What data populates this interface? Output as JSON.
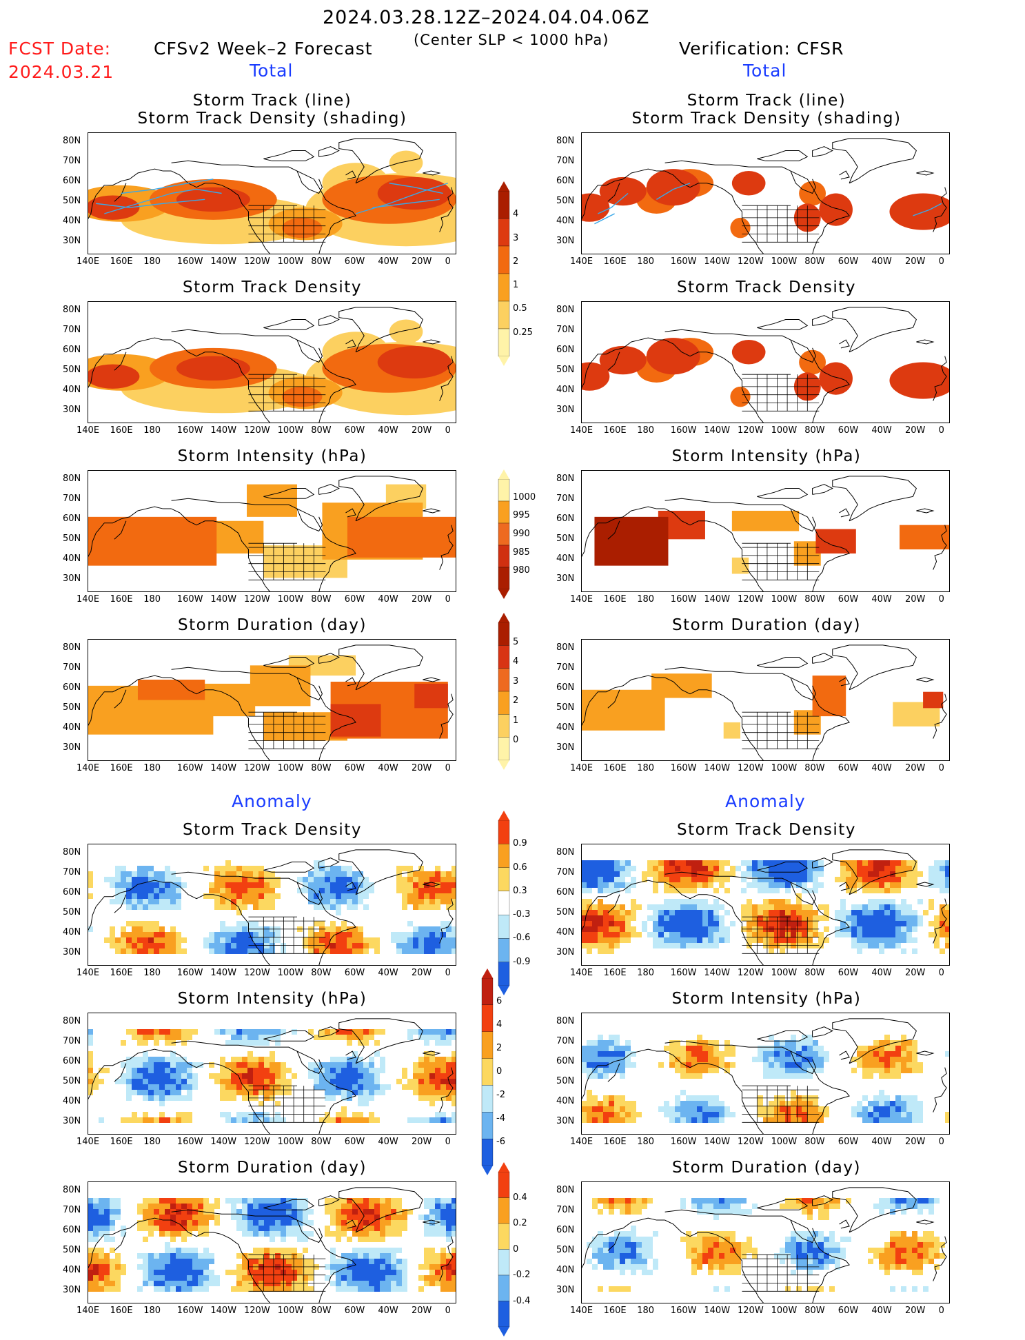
{
  "header": {
    "period": "2024.03.28.12Z–2024.04.04.06Z",
    "criterion": "(Center SLP < 1000 hPa)",
    "fcst_label": "FCST Date:",
    "fcst_date": "2024.03.21",
    "forecast_title": "CFSv2 Week–2 Forecast",
    "verification_title": "Verification: CFSR",
    "total_label": "Total",
    "anomaly_label": "Anomaly"
  },
  "panel_titles": {
    "track": [
      "Storm Track (line)",
      "Storm Track Density (shading)"
    ],
    "density": "Storm Track Density",
    "intensity": "Storm Intensity (hPa)",
    "duration": "Storm Duration (day)"
  },
  "axes": {
    "lon_labels": [
      "140E",
      "160E",
      "180",
      "160W",
      "140W",
      "120W",
      "100W",
      "80W",
      "60W",
      "40W",
      "20W",
      "0"
    ],
    "lat_labels": [
      "80N",
      "70N",
      "60N",
      "50N",
      "40N",
      "30N"
    ]
  },
  "colorbars": {
    "density": {
      "labels": [
        "4",
        "3",
        "2",
        "1",
        "0.5",
        "0.25"
      ],
      "colors": [
        "#aa1e00",
        "#dd3a10",
        "#f26a10",
        "#f9a020",
        "#fcd060",
        "#fff3a8"
      ]
    },
    "intensity": {
      "labels": [
        "1000",
        "995",
        "990",
        "985",
        "980"
      ],
      "colors": [
        "#fff3a8",
        "#f9a020",
        "#ee6a20",
        "#d03010",
        "#aa1e00"
      ]
    },
    "duration": {
      "labels": [
        "5",
        "4",
        "3",
        "2",
        "1",
        "0"
      ],
      "colors": [
        "#aa1e00",
        "#d83414",
        "#ee6a20",
        "#f9a020",
        "#fcd060",
        "#fff3a8"
      ]
    },
    "anom_density": {
      "labels": [
        "0.9",
        "0.6",
        "0.3",
        "-0.3",
        "-0.6",
        "-0.9"
      ],
      "colors": [
        "#f24010",
        "#f9a020",
        "#fcd860",
        "#ffffff",
        "#bfe9f8",
        "#6cb4f0",
        "#1e5fe0"
      ]
    },
    "anom_intensity": {
      "labels": [
        "6",
        "4",
        "2",
        "0",
        "-2",
        "-4",
        "-6"
      ],
      "colors": [
        "#c02010",
        "#f24010",
        "#f9a020",
        "#fcd860",
        "#bfe9f8",
        "#6cb4f0",
        "#1e5fe0"
      ]
    },
    "anom_duration": {
      "labels": [
        "0.4",
        "0.2",
        "0",
        "-0.2",
        "-0.4"
      ],
      "colors": [
        "#f24010",
        "#f9a020",
        "#fcd860",
        "#bfe9f8",
        "#6cb4f0",
        "#1e5fe0"
      ]
    }
  },
  "palette": {
    "warm": [
      "#fff3a8",
      "#fcd060",
      "#f9a020",
      "#f26a10",
      "#dd3a10",
      "#aa1e00"
    ],
    "cool": [
      "#bfe9f8",
      "#6cb4f0",
      "#1e5fe0"
    ],
    "track_line": "#3aa8e8"
  }
}
